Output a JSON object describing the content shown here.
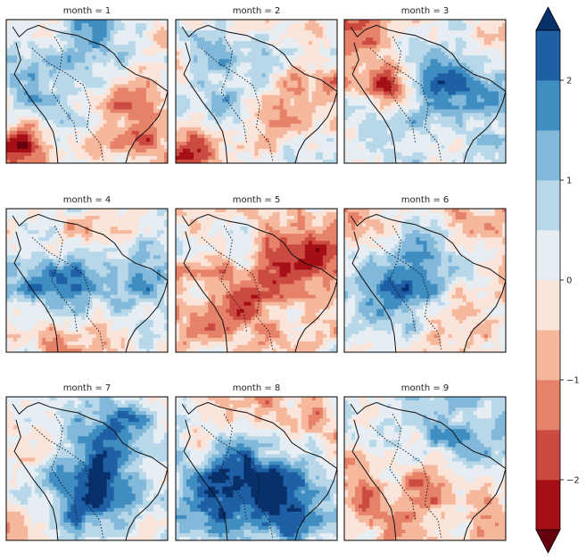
{
  "chart_data": {
    "type": "heatmap",
    "panels": [
      {
        "title": "month = 1",
        "month": 1
      },
      {
        "title": "month = 2",
        "month": 2
      },
      {
        "title": "month = 3",
        "month": 3
      },
      {
        "title": "month = 4",
        "month": 4
      },
      {
        "title": "month = 5",
        "month": 5
      },
      {
        "title": "month = 6",
        "month": 6
      },
      {
        "title": "month = 7",
        "month": 7
      },
      {
        "title": "month = 8",
        "month": 8
      },
      {
        "title": "month = 9",
        "month": 9
      }
    ],
    "colorbar": {
      "ticks": [
        2,
        1,
        0,
        -1,
        -2
      ],
      "tick_labels": [
        "2",
        "1",
        "0",
        "−1",
        "−2"
      ],
      "range": [
        -2.5,
        2.5
      ],
      "levels": [
        -2.5,
        -2.0,
        -1.5,
        -1.0,
        -0.5,
        0.0,
        0.5,
        1.0,
        1.5,
        2.0,
        2.5
      ],
      "extend": "both",
      "colors": [
        "#a50f15",
        "#cb4a42",
        "#e58269",
        "#f6b89d",
        "#fbe4d9",
        "#e6eef4",
        "#b8d8ea",
        "#82b8d9",
        "#3f8dc1",
        "#1f5fa5"
      ],
      "under_color": "#67000d",
      "over_color": "#08306b"
    },
    "colormap": "RdBu",
    "grid": false
  }
}
